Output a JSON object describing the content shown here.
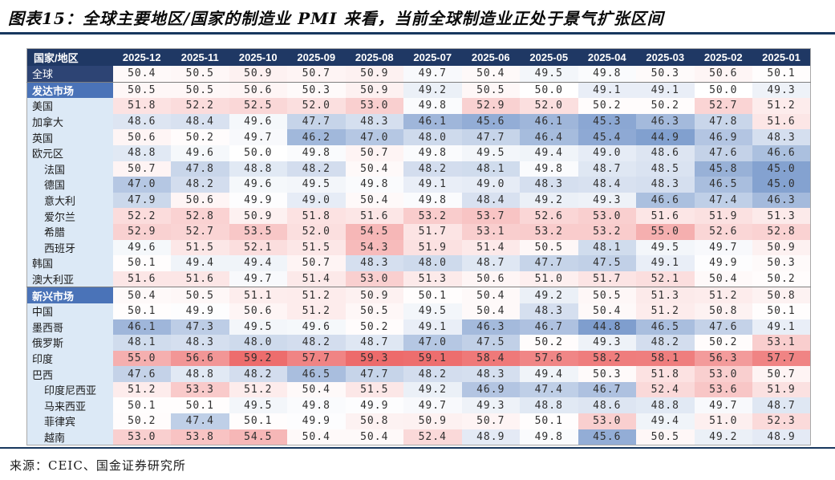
{
  "title": "图表15：全球主要地区/国家的制造业 PMI 来看，当前全球制造业正处于景气扩张区间",
  "source": "来源：CEIC、国金证券研究所",
  "colors": {
    "header_bg": "#1F3864",
    "global_row_bg": "#2D4474",
    "section_row_bg": "#4A73B8",
    "label_bg": "#DCE9F6",
    "table_border": "#A9A9A9",
    "rule_color": "#17375E",
    "heat_red": "#ED6B6B",
    "heat_blue": "#7F9ECE",
    "heat_mid": "#FFFFFF"
  },
  "chart_data": {
    "type": "heatmap",
    "title": "全球主要地区/国家的制造业PMI",
    "corner_label": "国家/地区",
    "columns": [
      "2025-12",
      "2025-11",
      "2025-10",
      "2025-09",
      "2025-08",
      "2025-07",
      "2025-06",
      "2025-05",
      "2025-04",
      "2025-03",
      "2025-02",
      "2025-01"
    ],
    "color_scale": {
      "mid_value": 50,
      "red_max_value": 59.3,
      "blue_min_value": 44.8
    },
    "rows": [
      {
        "label": "全球",
        "style": "global",
        "indent": false,
        "divider_after": true,
        "values": [
          50.4,
          50.5,
          50.9,
          50.7,
          50.9,
          49.7,
          50.4,
          49.5,
          49.8,
          50.3,
          50.6,
          50.1
        ]
      },
      {
        "label": "发达市场",
        "style": "section",
        "indent": false,
        "divider_after": false,
        "values": [
          50.5,
          50.5,
          50.6,
          50.3,
          50.9,
          49.2,
          50.5,
          50.0,
          49.1,
          49.1,
          50.0,
          49.3
        ]
      },
      {
        "label": "美国",
        "style": "normal",
        "indent": false,
        "divider_after": false,
        "values": [
          51.8,
          52.2,
          52.5,
          52.0,
          53.0,
          49.8,
          52.9,
          52.0,
          50.2,
          50.2,
          52.7,
          51.2
        ]
      },
      {
        "label": "加拿大",
        "style": "normal",
        "indent": false,
        "divider_after": false,
        "values": [
          48.6,
          48.4,
          49.6,
          47.7,
          48.3,
          46.1,
          45.6,
          46.1,
          45.3,
          46.3,
          47.8,
          51.6
        ]
      },
      {
        "label": "英国",
        "style": "normal",
        "indent": false,
        "divider_after": false,
        "values": [
          50.6,
          50.2,
          49.7,
          46.2,
          47.0,
          48.0,
          47.7,
          46.4,
          45.4,
          44.9,
          46.9,
          48.3
        ]
      },
      {
        "label": "欧元区",
        "style": "normal",
        "indent": false,
        "divider_after": false,
        "values": [
          48.8,
          49.6,
          50.0,
          49.8,
          50.7,
          49.8,
          49.5,
          49.4,
          49.0,
          48.6,
          47.6,
          46.6
        ]
      },
      {
        "label": "法国",
        "style": "normal",
        "indent": true,
        "divider_after": false,
        "values": [
          50.7,
          47.8,
          48.8,
          48.2,
          50.4,
          48.2,
          48.1,
          49.8,
          48.7,
          48.5,
          45.8,
          45.0
        ]
      },
      {
        "label": "德国",
        "style": "normal",
        "indent": true,
        "divider_after": false,
        "values": [
          47.0,
          48.2,
          49.6,
          49.5,
          49.8,
          49.1,
          49.0,
          48.3,
          48.4,
          48.3,
          46.5,
          45.0
        ]
      },
      {
        "label": "意大利",
        "style": "normal",
        "indent": true,
        "divider_after": false,
        "values": [
          47.9,
          50.6,
          49.9,
          49.0,
          50.4,
          49.8,
          48.4,
          49.2,
          49.3,
          46.6,
          47.4,
          46.3
        ]
      },
      {
        "label": "爱尔兰",
        "style": "normal",
        "indent": true,
        "divider_after": false,
        "values": [
          52.2,
          52.8,
          50.9,
          51.8,
          51.6,
          53.2,
          53.7,
          52.6,
          53.0,
          51.6,
          51.9,
          51.3
        ]
      },
      {
        "label": "希腊",
        "style": "normal",
        "indent": true,
        "divider_after": false,
        "values": [
          52.9,
          52.7,
          53.5,
          52.0,
          54.5,
          51.7,
          53.1,
          53.2,
          53.2,
          55.0,
          52.6,
          52.8
        ]
      },
      {
        "label": "西班牙",
        "style": "normal",
        "indent": true,
        "divider_after": false,
        "values": [
          49.6,
          51.5,
          52.1,
          51.5,
          54.3,
          51.9,
          51.4,
          50.5,
          48.1,
          49.5,
          49.7,
          50.9
        ]
      },
      {
        "label": "韩国",
        "style": "normal",
        "indent": false,
        "divider_after": false,
        "values": [
          50.1,
          49.4,
          49.4,
          50.7,
          48.3,
          48.0,
          48.7,
          47.7,
          47.5,
          49.1,
          49.9,
          50.3
        ]
      },
      {
        "label": "澳大利亚",
        "style": "normal",
        "indent": false,
        "divider_after": true,
        "values": [
          51.6,
          51.6,
          49.7,
          51.4,
          53.0,
          51.3,
          50.6,
          51.0,
          51.7,
          52.1,
          50.4,
          50.2
        ]
      },
      {
        "label": "新兴市场",
        "style": "section",
        "indent": false,
        "divider_after": false,
        "values": [
          50.4,
          50.5,
          51.1,
          51.2,
          50.9,
          50.1,
          50.4,
          49.2,
          50.5,
          51.3,
          51.2,
          50.8
        ]
      },
      {
        "label": "中国",
        "style": "normal",
        "indent": false,
        "divider_after": false,
        "values": [
          50.1,
          49.9,
          50.6,
          51.2,
          50.5,
          49.5,
          50.4,
          48.3,
          50.4,
          51.2,
          50.8,
          50.1
        ]
      },
      {
        "label": "墨西哥",
        "style": "normal",
        "indent": false,
        "divider_after": false,
        "values": [
          46.1,
          47.3,
          49.5,
          49.6,
          50.2,
          49.1,
          46.3,
          46.7,
          44.8,
          46.5,
          47.6,
          49.1
        ]
      },
      {
        "label": "俄罗斯",
        "style": "normal",
        "indent": false,
        "divider_after": false,
        "values": [
          48.1,
          48.3,
          48.0,
          48.2,
          48.7,
          47.0,
          47.5,
          50.2,
          49.3,
          48.2,
          50.2,
          53.1
        ]
      },
      {
        "label": "印度",
        "style": "normal",
        "indent": false,
        "divider_after": false,
        "values": [
          55.0,
          56.6,
          59.2,
          57.7,
          59.3,
          59.1,
          58.4,
          57.6,
          58.2,
          58.1,
          56.3,
          57.7
        ]
      },
      {
        "label": "巴西",
        "style": "normal",
        "indent": false,
        "divider_after": false,
        "values": [
          47.6,
          48.8,
          48.2,
          46.5,
          47.7,
          48.2,
          48.3,
          49.4,
          50.3,
          51.8,
          53.0,
          50.7
        ]
      },
      {
        "label": "印度尼西亚",
        "style": "normal",
        "indent": true,
        "divider_after": false,
        "values": [
          51.2,
          53.3,
          51.2,
          50.4,
          51.5,
          49.2,
          46.9,
          47.4,
          46.7,
          52.4,
          53.6,
          51.9
        ]
      },
      {
        "label": "马来西亚",
        "style": "normal",
        "indent": true,
        "divider_after": false,
        "values": [
          50.1,
          50.1,
          49.5,
          49.8,
          49.9,
          49.7,
          49.3,
          48.8,
          48.6,
          48.8,
          49.7,
          48.7
        ]
      },
      {
        "label": "菲律宾",
        "style": "normal",
        "indent": true,
        "divider_after": false,
        "values": [
          50.2,
          47.4,
          50.1,
          49.9,
          50.8,
          50.9,
          50.7,
          50.1,
          53.0,
          49.4,
          51.0,
          52.3
        ]
      },
      {
        "label": "越南",
        "style": "normal",
        "indent": true,
        "divider_after": false,
        "values": [
          53.0,
          53.8,
          54.5,
          50.4,
          50.4,
          52.4,
          48.9,
          49.8,
          45.6,
          50.5,
          49.2,
          48.9
        ]
      }
    ]
  }
}
